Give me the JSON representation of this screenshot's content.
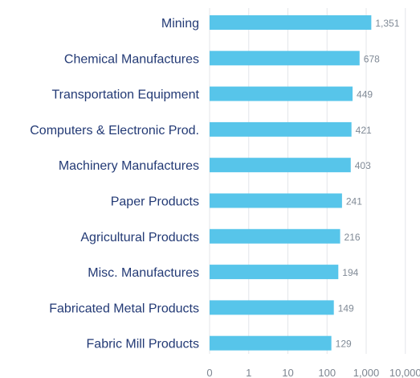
{
  "chart_data": {
    "type": "bar",
    "orientation": "horizontal",
    "scale": "log",
    "categories": [
      "Mining",
      "Chemical Manufactures",
      "Transportation Equipment",
      "Computers & Electronic Prod.",
      "Machinery Manufactures",
      "Paper Products",
      "Agricultural Products",
      "Misc. Manufactures",
      "Fabricated Metal Products",
      "Fabric Mill Products"
    ],
    "values": [
      1351,
      678,
      449,
      421,
      403,
      241,
      216,
      194,
      149,
      129
    ],
    "value_labels": [
      "1,351",
      "678",
      "449",
      "421",
      "403",
      "241",
      "216",
      "194",
      "149",
      "129"
    ],
    "x_ticks": [
      {
        "value": 0,
        "label": "0"
      },
      {
        "value": 1,
        "label": "1"
      },
      {
        "value": 10,
        "label": "10"
      },
      {
        "value": 100,
        "label": "100"
      },
      {
        "value": 1000,
        "label": "1,000"
      },
      {
        "value": 10000,
        "label": "10,000"
      }
    ],
    "xlim": [
      0,
      10000
    ],
    "grid": true,
    "legend": "none",
    "bar_color": "#57c5ea"
  }
}
